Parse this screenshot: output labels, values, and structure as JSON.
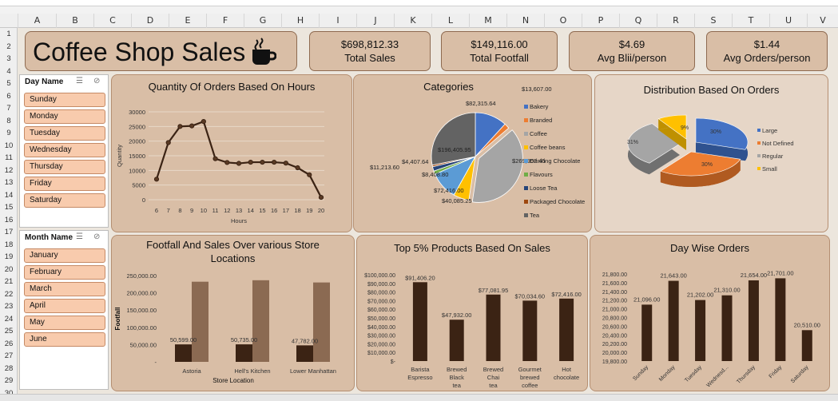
{
  "columns": [
    "A",
    "B",
    "C",
    "D",
    "E",
    "F",
    "G",
    "H",
    "I",
    "J",
    "K",
    "L",
    "M",
    "N",
    "O",
    "P",
    "Q",
    "R",
    "S",
    "T",
    "U",
    "V"
  ],
  "rows": [
    "1",
    "2",
    "3",
    "4",
    "5",
    "6",
    "7",
    "8",
    "9",
    "10",
    "11",
    "12",
    "13",
    "14",
    "15",
    "16",
    "17",
    "18",
    "19",
    "20",
    "21",
    "22",
    "23",
    "24",
    "25",
    "26",
    "27",
    "28",
    "29",
    "30"
  ],
  "title": "Coffee Shop Sales",
  "kpis": [
    {
      "value": "$698,812.33",
      "label": "Total Sales"
    },
    {
      "value": "$149,116.00",
      "label": "Total Footfall"
    },
    {
      "value": "$4.69",
      "label": "Avg Blii/person"
    },
    {
      "value": "$1.44",
      "label": "Avg Orders/person"
    }
  ],
  "slicers": {
    "day": {
      "header": "Day Name",
      "items": [
        "Sunday",
        "Monday",
        "Tuesday",
        "Wednesday",
        "Thursday",
        "Friday",
        "Saturday"
      ]
    },
    "month": {
      "header": "Month Name",
      "items": [
        "January",
        "February",
        "March",
        "April",
        "May",
        "June"
      ]
    }
  },
  "colors": {
    "panel": "#d9bea6",
    "bar_dark": "#3b2314",
    "bar_light": "#8b6a52",
    "line": "#3b2314",
    "slicer_item": "#f8cbad"
  },
  "chart_data": [
    {
      "type": "line",
      "title": "Quantity Of Orders Based On Hours",
      "xlabel": "Hours",
      "ylabel": "Quantity",
      "x": [
        6,
        7,
        8,
        9,
        10,
        11,
        12,
        13,
        14,
        15,
        16,
        17,
        18,
        19,
        20
      ],
      "values": [
        7000,
        19500,
        25000,
        25200,
        26700,
        14000,
        12700,
        12400,
        12800,
        12800,
        12800,
        12500,
        10900,
        8500,
        800
      ],
      "ylim": [
        0,
        30000
      ],
      "yticks": [
        "0",
        "5000",
        "10000",
        "15000",
        "20000",
        "25000",
        "30000"
      ],
      "grid": true
    },
    {
      "type": "pie",
      "title": "Categories",
      "categories": [
        "Bakery",
        "Branded",
        "Coffee",
        "Coffee beans",
        "Drinking Chocolate",
        "Flavours",
        "Loose Tea",
        "Packaged Chocolate",
        "Tea"
      ],
      "values": [
        82315.64,
        13607.0,
        269952.45,
        40085.25,
        72416.0,
        8408.8,
        11213.6,
        4407.64,
        196405.95
      ],
      "labels": [
        "$82,315.64",
        "$13,607.00",
        "$269,952.45",
        "$40,085.25",
        "$72,416.00",
        "$8,408.80",
        "$11,213.60",
        "$4,407.64",
        "$196,405.95"
      ],
      "colors": [
        "#4472c4",
        "#ed7d31",
        "#a5a5a5",
        "#ffc000",
        "#5b9bd5",
        "#70ad47",
        "#264478",
        "#9e480e",
        "#636363"
      ],
      "legend": "right"
    },
    {
      "type": "pie",
      "title": "Distribution Based On Orders",
      "categories": [
        "Large",
        "Not Defined",
        "Regular",
        "Small"
      ],
      "values": [
        30,
        30,
        31,
        9
      ],
      "labels": [
        "30%",
        "30%",
        "31%",
        "9%"
      ],
      "colors": [
        "#4472c4",
        "#ed7d31",
        "#a5a5a5",
        "#ffc000"
      ],
      "legend": "right"
    },
    {
      "type": "bar",
      "title": "Footfall And Sales Over various Store Locations",
      "xlabel": "Store Location",
      "ylabel": "Footfall",
      "categories": [
        "Astoria",
        "Hell's Kitchen",
        "Lower Manhattan"
      ],
      "series": [
        {
          "values": [
            50599,
            50735,
            47782
          ],
          "labels": [
            "50,599.00",
            "50,735.00",
            "47,782.00"
          ]
        },
        {
          "values": [
            232243.91,
            236511.17,
            230057.25
          ]
        }
      ],
      "ylim": [
        0,
        250000
      ],
      "yticks": [
        "-",
        "50,000.00",
        "100,000.00",
        "150,000.00",
        "200,000.00",
        "250,000.00"
      ]
    },
    {
      "type": "bar",
      "title": "Top 5% Products Based On Sales",
      "categories": [
        "Barista Espresso",
        "Brewed Black tea",
        "Brewed Chai tea",
        "Gourmet brewed coffee",
        "Hot chocolate"
      ],
      "values": [
        91406.2,
        47932.0,
        77081.95,
        70034.6,
        72416.0
      ],
      "labels": [
        "$91,406.20",
        "$47,932.00",
        "$77,081.95",
        "$70,034.60",
        "$72,416.00"
      ],
      "ylim": [
        0,
        100000
      ],
      "yticks": [
        "$-",
        "$10,000.00",
        "$20,000.00",
        "$30,000.00",
        "$40,000.00",
        "$50,000.00",
        "$60,000.00",
        "$70,000.00",
        "$80,000.00",
        "$90,000.00",
        "$100,000.00"
      ]
    },
    {
      "type": "bar",
      "title": "Day Wise Orders",
      "categories": [
        "Sunday",
        "Monday",
        "Tuesday",
        "Wednesd...",
        "Thursday",
        "Friday",
        "Saturday"
      ],
      "values": [
        21096,
        21643,
        21202,
        21310,
        21654,
        21701,
        20510
      ],
      "labels": [
        "21,096.00",
        "21,643.00",
        "21,202.00",
        "21,310.00",
        "21,654.00",
        "21,701.00",
        "20,510.00"
      ],
      "ylim": [
        19800,
        21800
      ],
      "yticks": [
        "19,800.00",
        "20,000.00",
        "20,200.00",
        "20,400.00",
        "20,600.00",
        "20,800.00",
        "21,000.00",
        "21,200.00",
        "21,400.00",
        "21,600.00",
        "21,800.00"
      ]
    }
  ]
}
